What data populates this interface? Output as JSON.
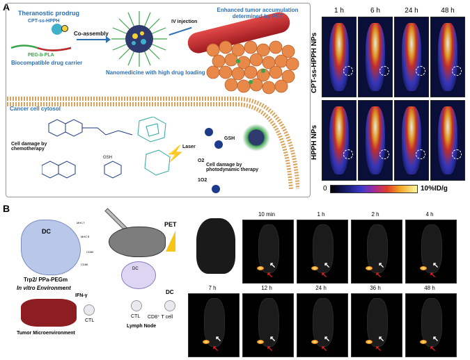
{
  "panelA": {
    "letter": "A",
    "prodrug_title": "Theranostic prodrug",
    "prodrug_name": "CPT-ss-HPPH",
    "coassembly": "Co-assembly",
    "carrier_name": "PEG-b-PLA",
    "carrier_title": "Biocompatible drug carrier",
    "iv_injection": "IV injection",
    "accumulation": "Enhanced tumor accumulation determined by PET",
    "nanomedicine": "Nanomedicine with high drug loading",
    "cytosol": "Cancer cell cytosol",
    "chemo": "Cell damage by chemotherapy",
    "gsh_small": "GSH",
    "gsh": "GSH",
    "laser": "Laser",
    "o2": "O2",
    "singlet": "1O2",
    "pdt": "Cell damage by photodynamic therapy",
    "times": [
      "1 h",
      "6 h",
      "24 h",
      "48 h"
    ],
    "row1": "CPT-ss-HPPH NPs",
    "row2": "HPPH NPs",
    "scale_min": "0",
    "scale_max": "10%ID/g"
  },
  "panelB": {
    "letter": "B",
    "dc": "DC",
    "mhc1": "MHC Ⅰ",
    "mhc2": "MHC Ⅱ",
    "cd80": "CD80",
    "cd86": "CD86",
    "trp2": "Trp2/ PPa-PEGm",
    "invitro": "In vitro Environment",
    "pet": "PET",
    "dc2": "DC",
    "dc3": "DC",
    "cd8": "CD8⁺ T cell",
    "ctl1": "CTL",
    "ctl2": "CTL",
    "ifn": "IFN-γ",
    "lymph": "Lymph Node",
    "tumor": "Tumor Microenvironment",
    "times_row1": [
      "10 min",
      "1 h",
      "2 h",
      "4 h"
    ],
    "times_row2": [
      "7 h",
      "12 h",
      "24 h",
      "36 h",
      "48 h"
    ]
  },
  "colors": {
    "accent_blue": "#2c6fb5",
    "vessel_red": "#c0272d",
    "cell_orange": "#e8894a"
  }
}
